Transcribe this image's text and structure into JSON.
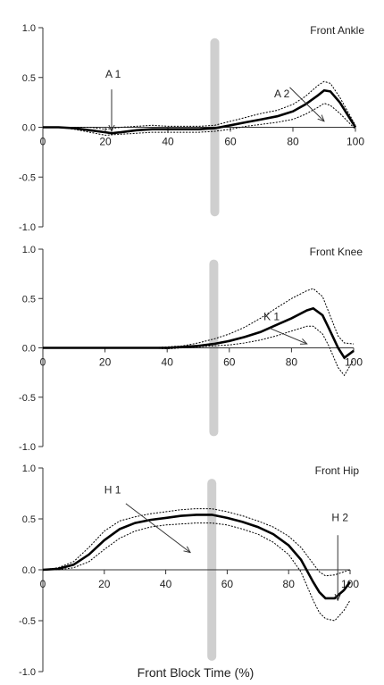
{
  "xlabel": "Front Block Time (%)",
  "chart_data": [
    {
      "type": "line",
      "title": "Front Ankle",
      "xlim": [
        0,
        100
      ],
      "ylim": [
        -1.0,
        1.0
      ],
      "xticks": [
        "0",
        "20",
        "40",
        "60",
        "80",
        "100"
      ],
      "yticks": [
        "1.0",
        "0.5",
        "0.0",
        "-0.5",
        "-1.0"
      ],
      "marker_band_x": 55,
      "series": [
        {
          "style": "mean",
          "x": [
            0,
            5,
            10,
            15,
            20,
            22,
            25,
            30,
            35,
            40,
            45,
            50,
            55,
            60,
            65,
            70,
            75,
            80,
            84,
            88,
            90,
            92,
            95,
            100
          ],
          "y": [
            0,
            0,
            -0.01,
            -0.03,
            -0.05,
            -0.06,
            -0.05,
            -0.03,
            -0.02,
            -0.02,
            -0.02,
            -0.02,
            -0.01,
            0.02,
            0.05,
            0.08,
            0.11,
            0.16,
            0.23,
            0.32,
            0.37,
            0.36,
            0.25,
            0
          ]
        },
        {
          "style": "upper",
          "x": [
            0,
            5,
            10,
            15,
            20,
            25,
            30,
            35,
            40,
            45,
            50,
            55,
            60,
            65,
            70,
            75,
            80,
            84,
            88,
            90,
            92,
            95,
            100
          ],
          "y": [
            0,
            0,
            0,
            0,
            -0.02,
            0,
            0.01,
            0.02,
            0.01,
            0.01,
            0.01,
            0.02,
            0.06,
            0.1,
            0.14,
            0.17,
            0.23,
            0.31,
            0.42,
            0.46,
            0.44,
            0.3,
            0.02
          ]
        },
        {
          "style": "lower",
          "x": [
            0,
            5,
            10,
            15,
            20,
            25,
            30,
            35,
            40,
            45,
            50,
            55,
            60,
            65,
            70,
            75,
            80,
            84,
            88,
            90,
            92,
            95,
            100
          ],
          "y": [
            0,
            0,
            -0.02,
            -0.05,
            -0.08,
            -0.07,
            -0.06,
            -0.05,
            -0.05,
            -0.05,
            -0.05,
            -0.04,
            -0.02,
            0.01,
            0.03,
            0.05,
            0.08,
            0.13,
            0.2,
            0.24,
            0.22,
            0.14,
            -0.02
          ]
        }
      ],
      "annotations": [
        {
          "label": "A 1",
          "text_x": 20,
          "text_y": 0.5,
          "arrow_from": [
            22,
            0.38
          ],
          "arrow_to": [
            22,
            -0.04
          ]
        },
        {
          "label": "A 2",
          "text_x": 74,
          "text_y": 0.3,
          "arrow_from": [
            79,
            0.4
          ],
          "arrow_to": [
            90,
            0.06
          ]
        }
      ]
    },
    {
      "type": "line",
      "title": "Front Knee",
      "xlim": [
        0,
        100
      ],
      "ylim": [
        -1.0,
        1.0
      ],
      "xticks": [
        "0",
        "20",
        "40",
        "60",
        "80",
        "100"
      ],
      "yticks": [
        "1.0",
        "0.5",
        "0.0",
        "-0.5",
        "-1.0"
      ],
      "marker_band_x": 55,
      "series": [
        {
          "style": "mean",
          "x": [
            0,
            10,
            20,
            30,
            35,
            40,
            45,
            50,
            55,
            60,
            65,
            70,
            75,
            80,
            85,
            87,
            90,
            92,
            95,
            97,
            100
          ],
          "y": [
            0,
            0,
            0,
            0,
            0,
            0,
            0.01,
            0.02,
            0.04,
            0.07,
            0.11,
            0.16,
            0.23,
            0.3,
            0.38,
            0.4,
            0.33,
            0.2,
            0.0,
            -0.1,
            -0.03
          ]
        },
        {
          "style": "upper",
          "x": [
            0,
            10,
            20,
            30,
            35,
            40,
            45,
            50,
            55,
            60,
            65,
            70,
            75,
            80,
            85,
            87,
            90,
            92,
            95,
            97,
            100
          ],
          "y": [
            0,
            0,
            0,
            0,
            0,
            0.01,
            0.02,
            0.05,
            0.09,
            0.14,
            0.21,
            0.3,
            0.4,
            0.5,
            0.58,
            0.6,
            0.52,
            0.36,
            0.12,
            0.05,
            0.04
          ]
        },
        {
          "style": "lower",
          "x": [
            0,
            10,
            20,
            30,
            35,
            40,
            45,
            50,
            55,
            60,
            65,
            70,
            75,
            80,
            85,
            87,
            90,
            92,
            95,
            97,
            100
          ],
          "y": [
            0,
            0,
            0,
            0,
            0,
            -0.01,
            0,
            0.01,
            0.02,
            0.03,
            0.05,
            0.08,
            0.12,
            0.17,
            0.22,
            0.22,
            0.14,
            0.02,
            -0.2,
            -0.28,
            -0.12
          ]
        }
      ],
      "annotations": [
        {
          "label": "K 1",
          "text_x": 71,
          "text_y": 0.28,
          "arrow_from": [
            73,
            0.2
          ],
          "arrow_to": [
            85,
            0.04
          ]
        }
      ]
    },
    {
      "type": "line",
      "title": "Front Hip",
      "xlim": [
        0,
        100
      ],
      "ylim": [
        -1.0,
        1.0
      ],
      "xticks": [
        "0",
        "20",
        "40",
        "60",
        "80",
        "100"
      ],
      "yticks": [
        "1.0",
        "0.5",
        "0.0",
        "-0.5",
        "-1.0"
      ],
      "marker_band_x": 55,
      "series": [
        {
          "style": "mean",
          "x": [
            0,
            5,
            10,
            15,
            20,
            25,
            30,
            35,
            40,
            45,
            50,
            55,
            60,
            65,
            70,
            75,
            80,
            84,
            88,
            90,
            92,
            95,
            98,
            100
          ],
          "y": [
            0,
            0.01,
            0.05,
            0.15,
            0.29,
            0.4,
            0.46,
            0.49,
            0.51,
            0.53,
            0.54,
            0.54,
            0.51,
            0.47,
            0.42,
            0.35,
            0.24,
            0.1,
            -0.12,
            -0.22,
            -0.28,
            -0.28,
            -0.2,
            -0.12
          ]
        },
        {
          "style": "upper",
          "x": [
            0,
            5,
            10,
            15,
            20,
            25,
            30,
            35,
            40,
            45,
            50,
            55,
            60,
            65,
            70,
            75,
            80,
            84,
            88,
            90,
            92,
            95,
            98,
            100
          ],
          "y": [
            0,
            0.02,
            0.08,
            0.22,
            0.38,
            0.48,
            0.52,
            0.55,
            0.57,
            0.59,
            0.6,
            0.6,
            0.57,
            0.53,
            0.48,
            0.42,
            0.33,
            0.22,
            0.06,
            -0.02,
            -0.06,
            -0.05,
            -0.02,
            0.0
          ]
        },
        {
          "style": "lower",
          "x": [
            0,
            5,
            10,
            15,
            20,
            25,
            30,
            35,
            40,
            45,
            50,
            55,
            60,
            65,
            70,
            75,
            80,
            84,
            88,
            90,
            92,
            95,
            98,
            100
          ],
          "y": [
            0,
            0,
            0.02,
            0.08,
            0.2,
            0.31,
            0.38,
            0.42,
            0.44,
            0.45,
            0.46,
            0.46,
            0.44,
            0.4,
            0.35,
            0.27,
            0.15,
            -0.02,
            -0.3,
            -0.42,
            -0.48,
            -0.5,
            -0.4,
            -0.3
          ]
        }
      ],
      "annotations": [
        {
          "label": "H 1",
          "text_x": 20,
          "text_y": 0.75,
          "arrow_from": [
            27,
            0.65
          ],
          "arrow_to": [
            48,
            0.17
          ]
        },
        {
          "label": "H 2",
          "text_x": 94,
          "text_y": 0.48,
          "arrow_from": [
            96,
            0.34
          ],
          "arrow_to": [
            96,
            -0.3
          ]
        }
      ]
    }
  ]
}
